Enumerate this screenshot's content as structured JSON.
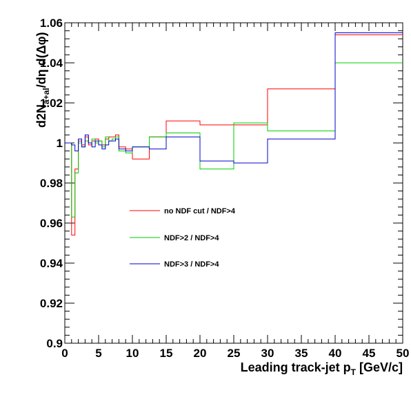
{
  "chart_data": {
    "type": "line",
    "step": true,
    "xlabel": "Leading track-jet p",
    "xlabel_sub": "T",
    "xlabel_unit": " [GeV/c]",
    "ylabel": "d2N",
    "ylabel_sub": "a+al",
    "ylabel_rest": "/dη d(Δφ)",
    "xlim": [
      0,
      50
    ],
    "ylim": [
      0.9,
      1.06
    ],
    "x_ticks": [
      0,
      5,
      10,
      15,
      20,
      25,
      30,
      35,
      40,
      45,
      50
    ],
    "x_tick_labels": [
      "0",
      "5",
      "10",
      "15",
      "20",
      "25",
      "30",
      "35",
      "40",
      "45",
      "50"
    ],
    "y_ticks": [
      0.9,
      0.92,
      0.94,
      0.96,
      0.98,
      1.0,
      1.02,
      1.04,
      1.06
    ],
    "y_tick_labels": [
      "0.9",
      "0.92",
      "0.94",
      "0.96",
      "0.98",
      "1",
      "1.02",
      "1.04",
      "1.06"
    ],
    "grid": false,
    "legend_position": "center-left",
    "bin_edges": [
      0,
      1,
      1.5,
      2,
      2.5,
      3,
      3.5,
      4,
      4.5,
      5,
      5.5,
      6,
      6.5,
      7,
      7.5,
      8,
      9,
      10,
      12.5,
      15,
      20,
      25,
      30,
      40,
      50
    ],
    "series": [
      {
        "name": "no NDF cut / NDF>4",
        "color": "#ff0000",
        "values": [
          1.0,
          0.954,
          0.987,
          1.001,
          0.999,
          1.003,
          0.999,
          1.001,
          1.002,
          1.001,
          0.999,
          1.002,
          1.003,
          1.003,
          1.004,
          0.998,
          0.997,
          0.992,
          1.003,
          1.011,
          1.009,
          1.009,
          1.027,
          1.054
        ]
      },
      {
        "name": "NDF>2 / NDF>4",
        "color": "#00cc00",
        "values": [
          1.0,
          0.963,
          0.985,
          1.0,
          0.998,
          1.001,
          1.0,
          1.002,
          1.0,
          1.001,
          0.998,
          1.003,
          1.001,
          1.002,
          1.003,
          0.996,
          0.995,
          0.998,
          1.003,
          1.005,
          0.987,
          1.01,
          1.006,
          1.04
        ]
      },
      {
        "name": "NDF>3 / NDF>4",
        "color": "#0000cc",
        "values": [
          1.0,
          0.999,
          0.996,
          1.002,
          0.998,
          1.004,
          1.0,
          0.998,
          1.001,
          0.999,
          0.997,
          0.999,
          1.001,
          1.001,
          1.002,
          0.997,
          0.996,
          0.998,
          0.997,
          1.003,
          0.991,
          0.99,
          1.002,
          1.055
        ]
      }
    ]
  }
}
